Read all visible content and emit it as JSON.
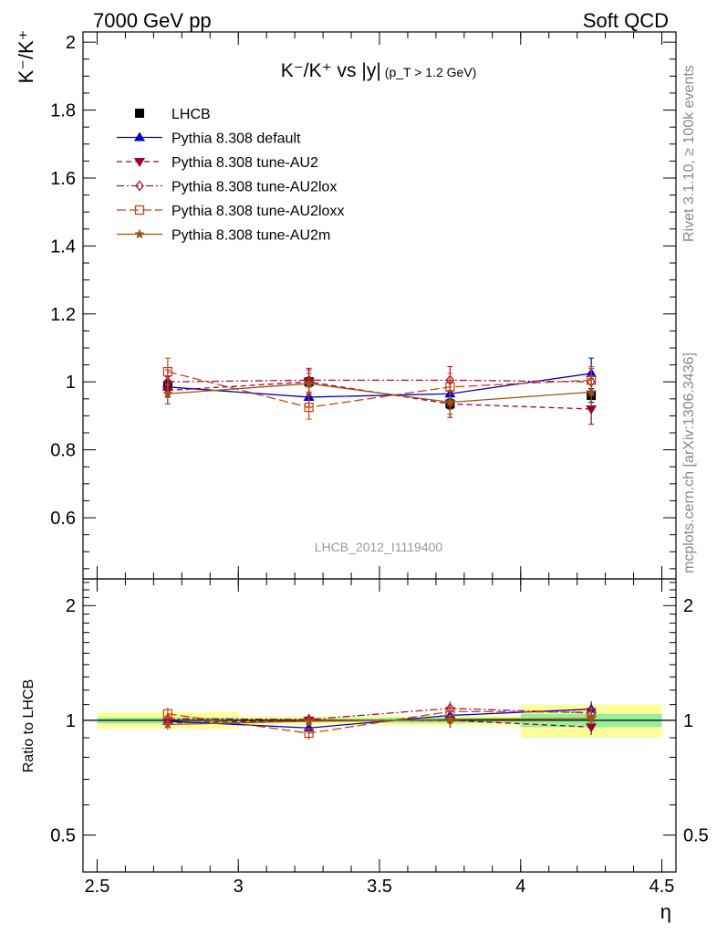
{
  "header": {
    "left": "7000 GeV pp",
    "right": "Soft QCD"
  },
  "side_text": {
    "rivet": "Rivet 3.1.10, ≥ 100k events",
    "mcplots": "mcplots.cern.ch [arXiv:1306.3436]"
  },
  "chart_data": [
    {
      "type": "line",
      "title": "K⁻/K⁺ vs |y|",
      "title_note": "(p_T > 1.2 GeV)",
      "ylabel": "K⁻/K⁺",
      "xlabel": "η",
      "analysis_label": "LHCB_2012_I1119400",
      "xlim": [
        2.45,
        4.55
      ],
      "ylim": [
        0.42,
        2.03
      ],
      "x_ticks": [
        2.5,
        3,
        3.5,
        4,
        4.5
      ],
      "x_tick_labels": [
        "2.5",
        "3",
        "3.5",
        "4",
        "4.5"
      ],
      "y_ticks": [
        0.6,
        0.8,
        1.0,
        1.2,
        1.4,
        1.6,
        1.8,
        2.0
      ],
      "y_tick_labels": [
        "0.6",
        "0.8",
        "1",
        "1.2",
        "1.4",
        "1.6",
        "1.8",
        "2"
      ],
      "legend_position": "top-left",
      "series": [
        {
          "name": "LHCB",
          "color": "#000000",
          "marker": "square-filled",
          "dash": "none",
          "x": [
            2.75,
            3.25,
            3.75,
            4.25
          ],
          "y": [
            0.99,
            1.0,
            0.935,
            0.96
          ],
          "yerr": [
            0.015,
            0.012,
            0.015,
            0.02
          ]
        },
        {
          "name": "Pythia 8.308 default",
          "color": "#0000cc",
          "marker": "triangle-up",
          "dash": "none",
          "x": [
            2.75,
            3.25,
            3.75,
            4.25
          ],
          "y": [
            0.985,
            0.955,
            0.965,
            1.025
          ],
          "yerr": [
            0.03,
            0.03,
            0.035,
            0.045
          ]
        },
        {
          "name": "Pythia 8.308 tune-AU2",
          "color": "#990033",
          "marker": "triangle-down",
          "dash": "dashed",
          "x": [
            2.75,
            3.25,
            3.75,
            4.25
          ],
          "y": [
            0.975,
            1.0,
            0.935,
            0.92
          ],
          "yerr": [
            0.04,
            0.035,
            0.04,
            0.045
          ]
        },
        {
          "name": "Pythia 8.308 tune-AU2lox",
          "color": "#aa1144",
          "marker": "diamond-open",
          "dash": "dashdot",
          "x": [
            2.75,
            3.25,
            3.75,
            4.25
          ],
          "y": [
            1.0,
            1.005,
            1.005,
            1.0
          ],
          "yerr": [
            0.035,
            0.035,
            0.04,
            0.04
          ]
        },
        {
          "name": "Pythia 8.308 tune-AU2loxx",
          "color": "#cc4411",
          "marker": "square-open",
          "dash": "longdash",
          "x": [
            2.75,
            3.25,
            3.75,
            4.25
          ],
          "y": [
            1.03,
            0.925,
            0.985,
            1.005
          ],
          "yerr": [
            0.04,
            0.035,
            0.04,
            0.04
          ]
        },
        {
          "name": "Pythia 8.308 tune-AU2m",
          "color": "#995511",
          "marker": "star",
          "dash": "none",
          "x": [
            2.75,
            3.25,
            3.75,
            4.25
          ],
          "y": [
            0.965,
            0.995,
            0.94,
            0.97
          ],
          "yerr": [
            0.03,
            0.03,
            0.035,
            0.04
          ]
        }
      ]
    },
    {
      "type": "line",
      "ylabel": "Ratio to LHCB",
      "xlabel": "η",
      "xlim": [
        2.45,
        4.55
      ],
      "ylim": [
        0.4,
        2.35
      ],
      "log_y": true,
      "y_ticks": [
        0.5,
        1,
        2
      ],
      "y_tick_labels": [
        "0.5",
        "1",
        "2"
      ],
      "bands": [
        {
          "x": [
            2.5,
            3.0
          ],
          "stat": 0.017,
          "total": 0.05
        },
        {
          "x": [
            3.0,
            3.5
          ],
          "stat": 0.012,
          "total": 0.025
        },
        {
          "x": [
            3.5,
            4.0
          ],
          "stat": 0.016,
          "total": 0.03
        },
        {
          "x": [
            4.0,
            4.5
          ],
          "stat": 0.04,
          "total": 0.1
        }
      ],
      "series": [
        {
          "name": "Pythia 8.308 default",
          "x": [
            2.75,
            3.25,
            3.75,
            4.25
          ],
          "y": [
            0.995,
            0.955,
            1.03,
            1.07
          ],
          "yerr": [
            0.03,
            0.03,
            0.04,
            0.05
          ]
        },
        {
          "name": "Pythia 8.308 tune-AU2",
          "x": [
            2.75,
            3.25,
            3.75,
            4.25
          ],
          "y": [
            0.985,
            1.0,
            1.0,
            0.96
          ],
          "yerr": [
            0.04,
            0.035,
            0.045,
            0.045
          ]
        },
        {
          "name": "Pythia 8.308 tune-AU2lox",
          "x": [
            2.75,
            3.25,
            3.75,
            4.25
          ],
          "y": [
            1.01,
            1.005,
            1.075,
            1.045
          ],
          "yerr": [
            0.035,
            0.035,
            0.045,
            0.04
          ]
        },
        {
          "name": "Pythia 8.308 tune-AU2loxx",
          "x": [
            2.75,
            3.25,
            3.75,
            4.25
          ],
          "y": [
            1.04,
            0.925,
            1.055,
            1.05
          ],
          "yerr": [
            0.04,
            0.035,
            0.045,
            0.04
          ]
        },
        {
          "name": "Pythia 8.308 tune-AU2m",
          "x": [
            2.75,
            3.25,
            3.75,
            4.25
          ],
          "y": [
            0.975,
            0.995,
            1.005,
            1.01
          ],
          "yerr": [
            0.03,
            0.03,
            0.035,
            0.04
          ]
        }
      ]
    }
  ]
}
